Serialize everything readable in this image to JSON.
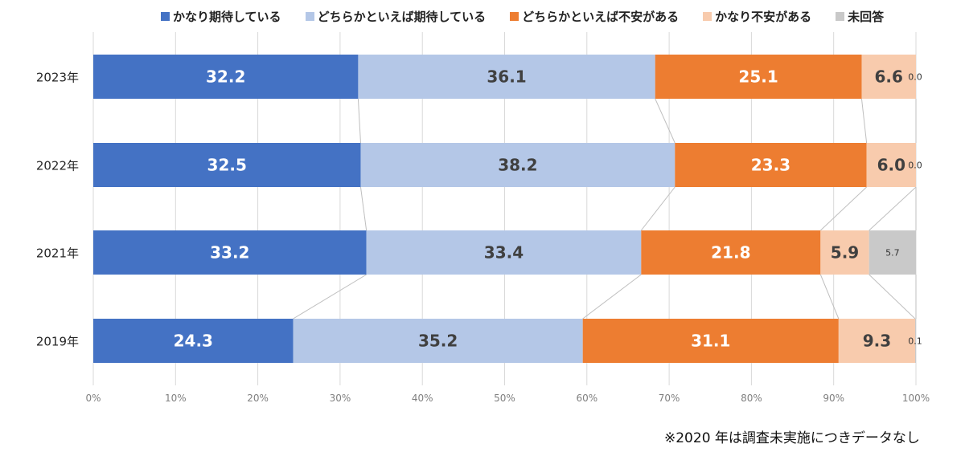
{
  "chart_data": {
    "type": "bar",
    "orientation": "horizontal",
    "stacked": "100%",
    "title": "",
    "xlabel": "",
    "ylabel": "",
    "xlim": [
      0,
      100
    ],
    "grid": true,
    "legend_position": "top",
    "categories": [
      "2023年",
      "2022年",
      "2021年",
      "2019年"
    ],
    "x_ticks": [
      "0%",
      "10%",
      "20%",
      "30%",
      "40%",
      "50%",
      "60%",
      "70%",
      "80%",
      "90%",
      "100%"
    ],
    "series": [
      {
        "name": "かなり期待している",
        "color": "#4472C4",
        "label_color": "#ffffff",
        "values": [
          32.2,
          32.5,
          33.2,
          24.3
        ]
      },
      {
        "name": "どちらかといえば期待している",
        "color": "#B4C7E7",
        "label_color": "#404040",
        "values": [
          36.1,
          38.2,
          33.4,
          35.2
        ]
      },
      {
        "name": "どちらかといえば不安がある",
        "color": "#ED7D31",
        "label_color": "#ffffff",
        "values": [
          25.1,
          23.3,
          21.8,
          31.1
        ]
      },
      {
        "name": "かなり不安がある",
        "color": "#F8CBAD",
        "label_color": "#404040",
        "values": [
          6.6,
          6.0,
          5.9,
          9.3
        ]
      },
      {
        "name": "未回答",
        "color": "#C9C9C9",
        "label_color": "#333333",
        "values": [
          0.0,
          0.0,
          5.7,
          0.1
        ]
      }
    ],
    "value_labels": [
      [
        "32.2",
        "36.1",
        "25.1",
        "6.6",
        "0.0"
      ],
      [
        "32.5",
        "38.2",
        "23.3",
        "6.0",
        "0.0"
      ],
      [
        "33.2",
        "33.4",
        "21.8",
        "5.9",
        "5.7"
      ],
      [
        "24.3",
        "35.2",
        "31.1",
        "9.3",
        "0.1"
      ]
    ],
    "series_lines": true,
    "annotation": "※2020 年は調査未実施につきデータなし"
  },
  "legend": [
    {
      "label": "かなり期待している",
      "color": "#4472C4"
    },
    {
      "label": "どちらかといえば期待している",
      "color": "#B4C7E7"
    },
    {
      "label": "どちらかといえば不安がある",
      "color": "#ED7D31"
    },
    {
      "label": "かなり不安がある",
      "color": "#F8CBAD"
    },
    {
      "label": "未回答",
      "color": "#C9C9C9"
    }
  ],
  "note": "※2020 年は調査未実施につきデータなし"
}
